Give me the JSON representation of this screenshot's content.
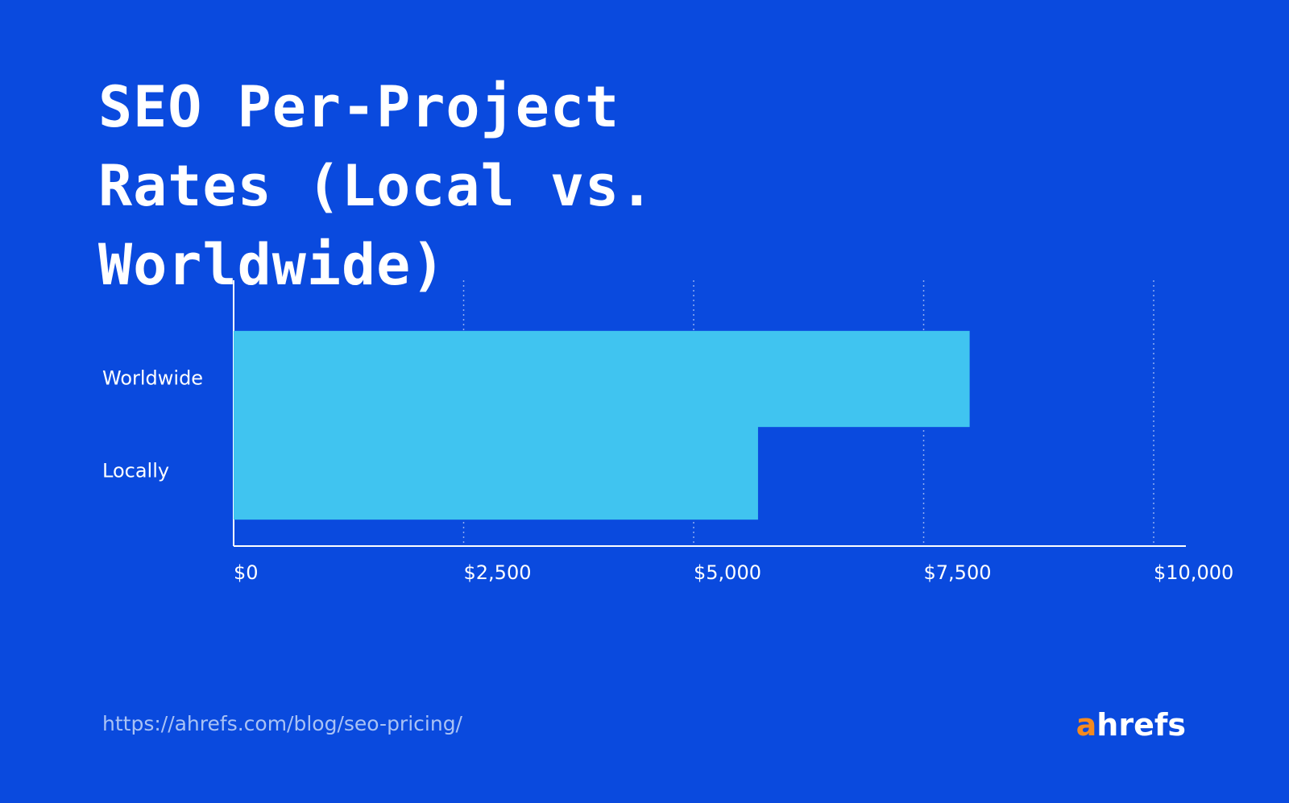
{
  "chart_data": {
    "type": "hbar",
    "title": "SEO Per-Project Rates (Local vs. Worldwide)",
    "categories": [
      "Worldwide",
      "Locally"
    ],
    "values": [
      8000,
      5700
    ],
    "color": "#40c4f0",
    "xlim": [
      0,
      10000
    ],
    "xticks": [
      {
        "value": 0,
        "label": "$0"
      },
      {
        "value": 2500,
        "label": "$2,500"
      },
      {
        "value": 5000,
        "label": "$5,000"
      },
      {
        "value": 7500,
        "label": "$7,500"
      },
      {
        "value": 10000,
        "label": "$10,000"
      }
    ],
    "grid": true,
    "source": "https://ahrefs.com/blog/seo-pricing/",
    "logo": "ahrefs"
  }
}
